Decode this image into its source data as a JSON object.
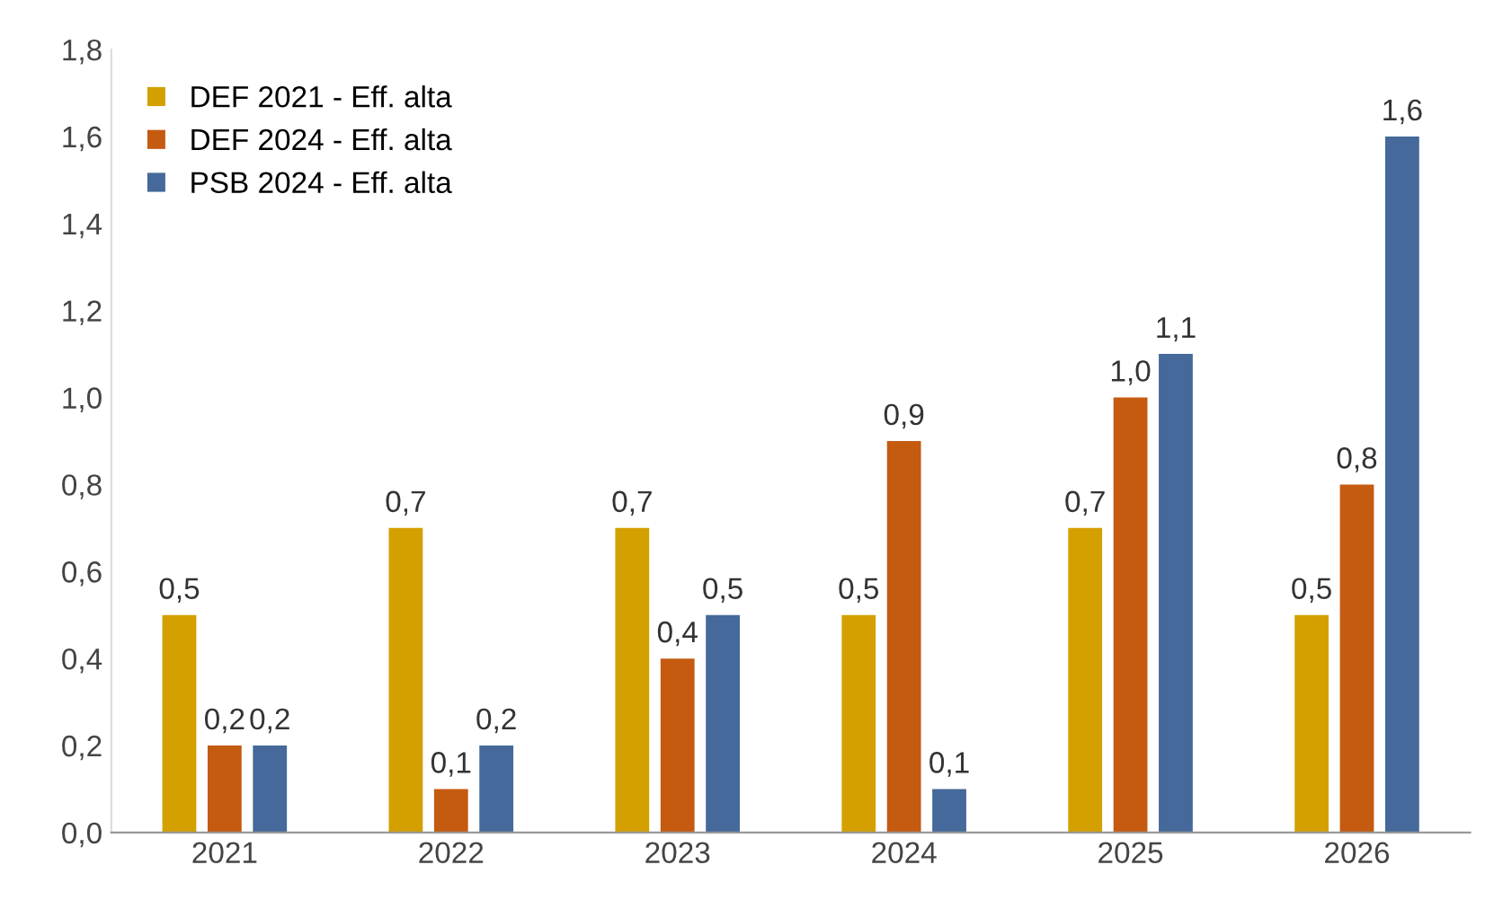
{
  "chart_data": {
    "type": "bar",
    "categories": [
      "2021",
      "2022",
      "2023",
      "2024",
      "2025",
      "2026"
    ],
    "series": [
      {
        "name": "DEF 2021 - Eff. alta",
        "color": "#d4a000",
        "values": [
          0.5,
          0.7,
          0.7,
          0.5,
          0.7,
          0.5
        ],
        "value_labels": [
          "0,5",
          "0,7",
          "0,7",
          "0,5",
          "0,7",
          "0,5"
        ]
      },
      {
        "name": "DEF 2024 - Eff. alta",
        "color": "#c55a11",
        "values": [
          0.2,
          0.1,
          0.4,
          0.9,
          1.0,
          0.8
        ],
        "value_labels": [
          "0,2",
          "0,1",
          "0,4",
          "0,9",
          "1,0",
          "0,8"
        ]
      },
      {
        "name": "PSB 2024 - Eff. alta",
        "color": "#44699a",
        "values": [
          0.2,
          0.2,
          0.5,
          0.1,
          1.1,
          1.6
        ],
        "value_labels": [
          "0,2",
          "0,2",
          "0,5",
          "0,1",
          "1,1",
          "1,6"
        ]
      }
    ],
    "ylim": [
      0,
      1.8
    ],
    "yticks": [
      {
        "value": 0,
        "label": "0,0"
      },
      {
        "value": 0.2,
        "label": "0,2"
      },
      {
        "value": 0.4,
        "label": "0,4"
      },
      {
        "value": 0.6,
        "label": "0,6"
      },
      {
        "value": 0.8,
        "label": "0,8"
      },
      {
        "value": 1.0,
        "label": "1,0"
      },
      {
        "value": 1.2,
        "label": "1,2"
      },
      {
        "value": 1.4,
        "label": "1,4"
      },
      {
        "value": 1.6,
        "label": "1,6"
      },
      {
        "value": 1.8,
        "label": "1,8"
      }
    ],
    "grid": false,
    "legend": "top left"
  }
}
